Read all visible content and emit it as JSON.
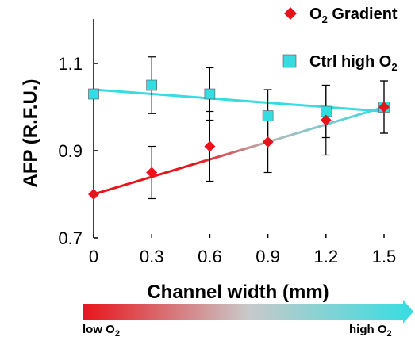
{
  "chart_data": {
    "type": "scatter",
    "xlabel": "Channel width (mm)",
    "ylabel": "AFP (R.F.U.)",
    "x_ticks": [
      "0",
      "0.3",
      "0.6",
      "0.9",
      "1.2",
      "1.5"
    ],
    "y_ticks": [
      "0.7",
      "0.9",
      "1.1"
    ],
    "xlim": [
      0,
      1.5
    ],
    "ylim": [
      0.7,
      1.1
    ],
    "grid": false,
    "legend_position": "top-right",
    "series": [
      {
        "name": "O2 Gradient",
        "label_main": "O",
        "label_sub": "2",
        "label_rest": " Gradient",
        "marker": "diamond",
        "color": "#e8141b",
        "x": [
          0,
          0.3,
          0.6,
          0.9,
          1.2,
          1.5
        ],
        "y": [
          0.8,
          0.85,
          0.91,
          0.92,
          0.97,
          1.0
        ],
        "error": [
          0,
          0.06,
          0.08,
          0.07,
          0.08,
          0.06
        ],
        "trend": {
          "from": [
            0,
            0.8
          ],
          "to": [
            1.5,
            1.0
          ]
        }
      },
      {
        "name": "Ctrl high O2",
        "label_main": "Ctrl high O",
        "label_sub": "2",
        "label_rest": "",
        "marker": "square",
        "color": "#35dde2",
        "x": [
          0,
          0.3,
          0.6,
          0.9,
          1.2,
          1.5
        ],
        "y": [
          1.03,
          1.05,
          1.03,
          0.98,
          0.99,
          1.0
        ],
        "error": [
          0,
          0.065,
          0.06,
          0.06,
          0.06,
          0.06
        ],
        "trend": {
          "from": [
            0,
            1.04
          ],
          "to": [
            1.5,
            0.99
          ]
        }
      }
    ],
    "gradient_bar": {
      "left_main": "low O",
      "left_sub": "2",
      "right_main": "high O",
      "right_sub": "2",
      "color_low": "#e8141b",
      "color_high": "#35dde2"
    }
  }
}
